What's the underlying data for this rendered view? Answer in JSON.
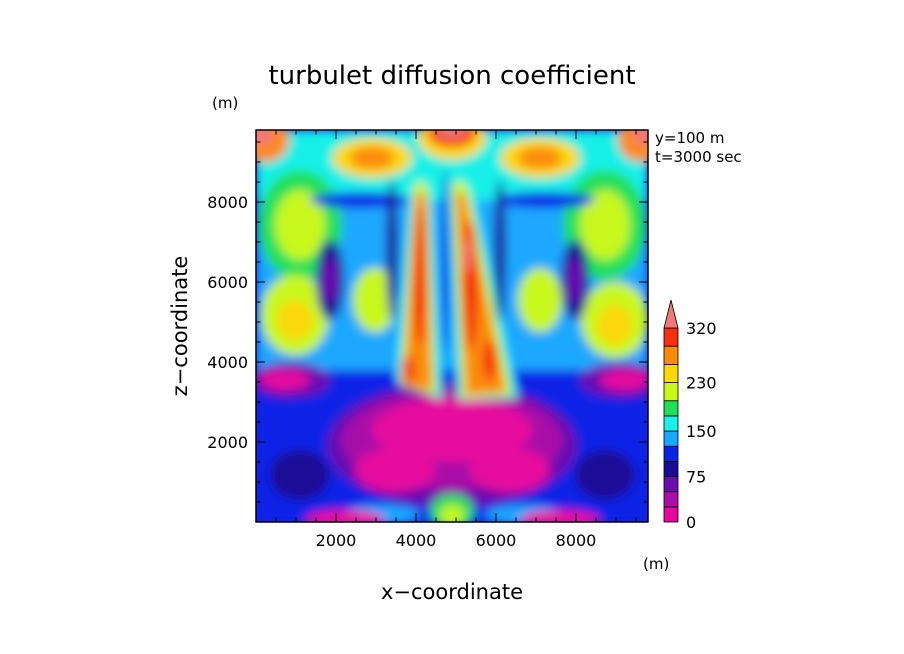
{
  "chart_data": {
    "type": "heatmap",
    "title": "turbulet diffusion coefficient",
    "xlabel": "x−coordinate",
    "ylabel": "z−coordinate",
    "x_unit": "(m)",
    "y_unit": "(m)",
    "annotations": [
      "y=100  m",
      "t=3000 sec"
    ],
    "xlim": [
      0,
      9800
    ],
    "ylim": [
      0,
      9800
    ],
    "x_ticks": [
      2000,
      4000,
      6000,
      8000
    ],
    "y_ticks": [
      2000,
      4000,
      6000,
      8000
    ],
    "colorbar": {
      "levels": [
        0,
        25,
        50,
        75,
        100,
        125,
        150,
        175,
        200,
        230,
        260,
        290,
        320
      ],
      "labels": [
        "0",
        "75",
        "150",
        "230",
        "320"
      ],
      "colors": [
        "#e6089e",
        "#a810a8",
        "#6a0cb0",
        "#1a0a96",
        "#0a24e6",
        "#1aa8ff",
        "#18f0e8",
        "#20e05a",
        "#c8f81a",
        "#fcd808",
        "#fc8a0a",
        "#f43010"
      ],
      "extend_color": "#f07878"
    },
    "field_features": [
      {
        "label": "left plume",
        "x": 4100,
        "z0": 3100,
        "z1": 8800,
        "value": 300
      },
      {
        "label": "right plume",
        "x": 5450,
        "z0": 3100,
        "z1": 8600,
        "value": 300
      },
      {
        "label": "top-center",
        "x": 4900,
        "z": 9700,
        "value": 330
      },
      {
        "label": "top-left corner",
        "x": 0,
        "z": 9800,
        "value": 330
      },
      {
        "label": "top-right corner",
        "x": 9800,
        "z": 9800,
        "value": 330
      }
    ]
  }
}
